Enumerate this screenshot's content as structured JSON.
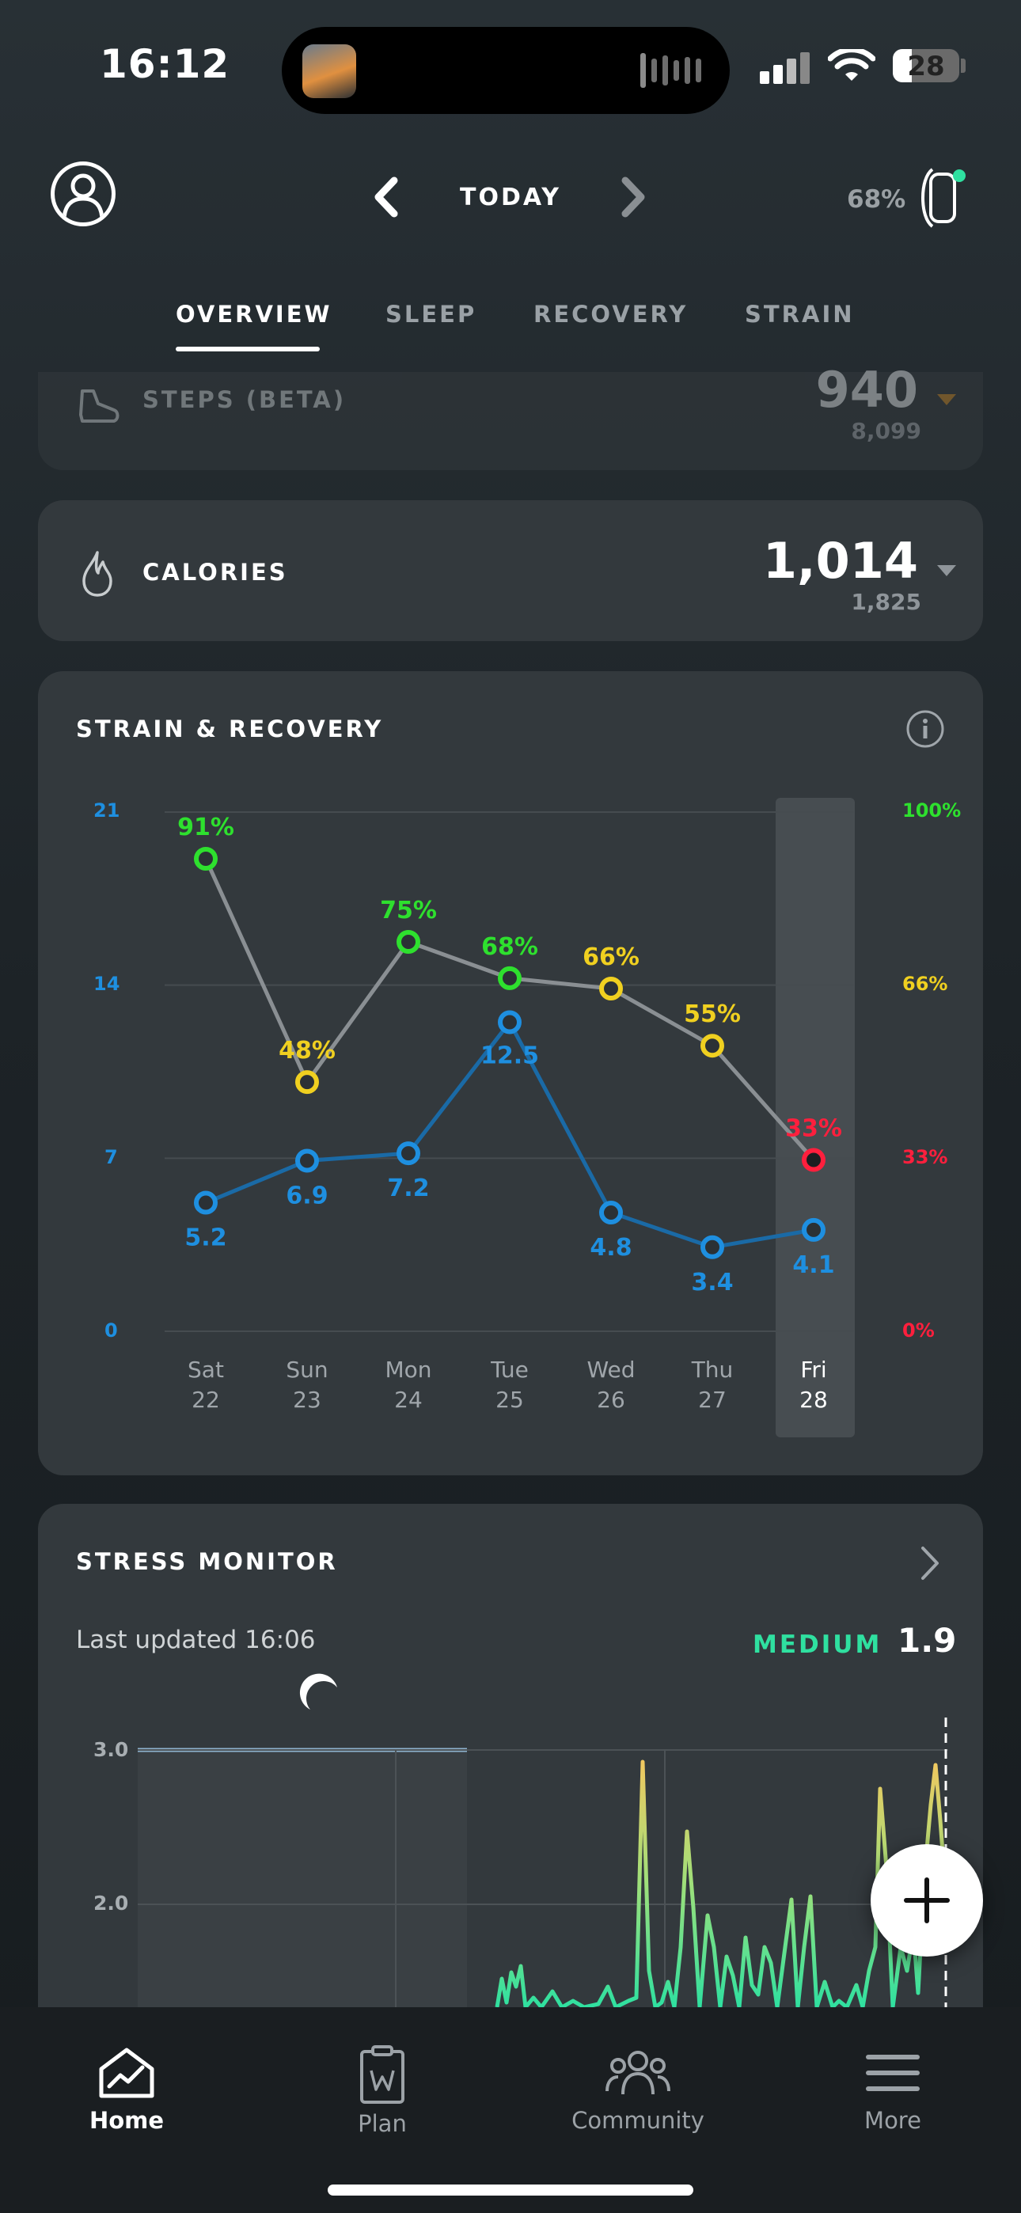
{
  "status_bar": {
    "time": "16:12",
    "battery": "28"
  },
  "header": {
    "date_label": "TODAY",
    "device_battery": "68%"
  },
  "tabs": [
    {
      "label": "OVERVIEW",
      "active": true
    },
    {
      "label": "SLEEP",
      "active": false
    },
    {
      "label": "RECOVERY",
      "active": false
    },
    {
      "label": "STRAIN",
      "active": false
    }
  ],
  "steps": {
    "label": "STEPS (BETA)",
    "value": "940",
    "goal": "8,099"
  },
  "calories": {
    "label": "CALORIES",
    "value": "1,014",
    "goal": "1,825"
  },
  "strain_recovery": {
    "title": "STRAIN & RECOVERY",
    "left_axis": [
      "21",
      "14",
      "7",
      "0"
    ],
    "right_axis": [
      "100%",
      "66%",
      "33%",
      "0%"
    ],
    "days": [
      {
        "day": "Sat",
        "date": "22"
      },
      {
        "day": "Sun",
        "date": "23"
      },
      {
        "day": "Mon",
        "date": "24"
      },
      {
        "day": "Tue",
        "date": "25"
      },
      {
        "day": "Wed",
        "date": "26"
      },
      {
        "day": "Thu",
        "date": "27"
      },
      {
        "day": "Fri",
        "date": "28"
      }
    ],
    "selected_index": 6
  },
  "chart_data": {
    "type": "line",
    "categories": [
      "Sat 22",
      "Sun 23",
      "Mon 24",
      "Tue 25",
      "Wed 26",
      "Thu 27",
      "Fri 28"
    ],
    "series": [
      {
        "values": [
          5.2,
          6.9,
          7.2,
          12.5,
          4.8,
          3.4,
          4.1
        ],
        "labels": [
          "5.2",
          "6.9",
          "7.2",
          "12.5",
          "4.8",
          "3.4",
          "4.1"
        ],
        "axis": "left",
        "color": "#1e8fe0"
      },
      {
        "values": [
          91,
          48,
          75,
          68,
          66,
          55,
          33
        ],
        "labels": [
          "91%",
          "48%",
          "75%",
          "68%",
          "66%",
          "55%",
          "33%"
        ],
        "axis": "right",
        "color": "#8a8f93",
        "point_colors": [
          "#2ee02e",
          "#f0d020",
          "#2ee02e",
          "#2ee02e",
          "#f0d020",
          "#f0d020",
          "#ff1f3d"
        ]
      }
    ],
    "ylim_left": [
      0,
      21
    ],
    "ylim_right": [
      0,
      100
    ],
    "grid": true
  },
  "stress": {
    "title": "STRESS MONITOR",
    "updated": "Last updated 16:06",
    "level": "MEDIUM",
    "score": "1.9",
    "yticks": [
      "3.0",
      "2.0"
    ]
  },
  "bottom_nav": [
    {
      "label": "Home",
      "icon": "home-chart-icon",
      "active": true
    },
    {
      "label": "Plan",
      "icon": "clipboard-icon",
      "active": false
    },
    {
      "label": "Community",
      "icon": "people-icon",
      "active": false
    },
    {
      "label": "More",
      "icon": "hamburger-menu-icon",
      "active": false
    }
  ],
  "colors": {
    "strain_blue": "#1e8fe0",
    "recovery_green": "#2ee02e",
    "recovery_yellow": "#f0d020",
    "recovery_red": "#ff1f3d",
    "stress_green": "#2fe0a0"
  }
}
